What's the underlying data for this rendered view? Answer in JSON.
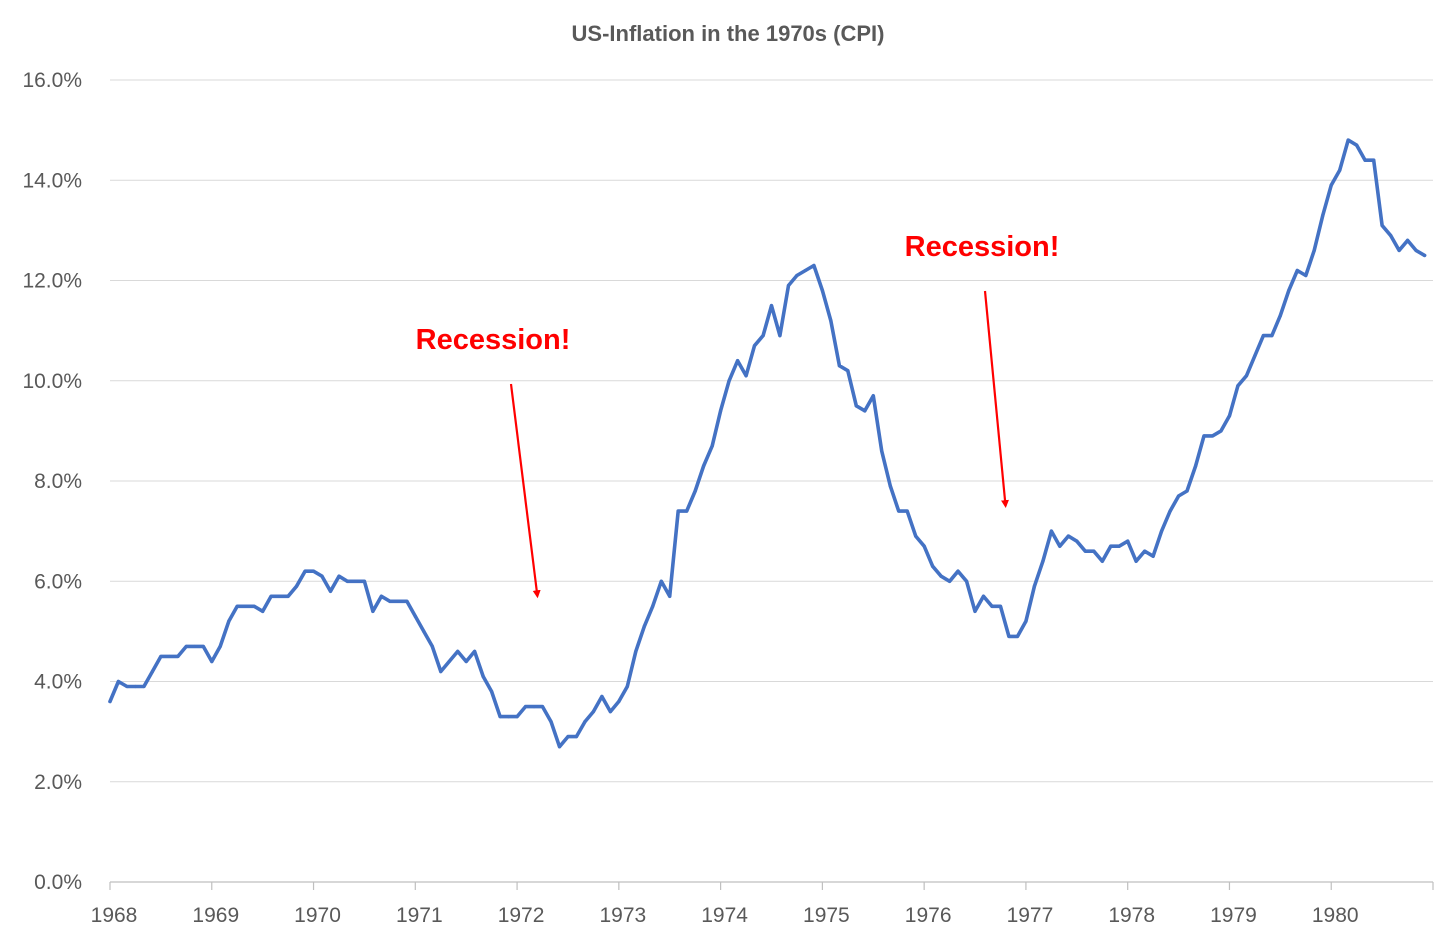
{
  "chart_data": {
    "type": "line",
    "title": "US-Inflation in the 1970s (CPI)",
    "xlabel": "",
    "ylabel": "",
    "xlim": [
      1968,
      1981
    ],
    "ylim": [
      0,
      16
    ],
    "y_tick_values": [
      0,
      2,
      4,
      6,
      8,
      10,
      12,
      14,
      16
    ],
    "y_tick_labels": [
      "0.0%",
      "2.0%",
      "4.0%",
      "6.0%",
      "8.0%",
      "10.0%",
      "12.0%",
      "14.0%",
      "16.0%"
    ],
    "x_tick_values": [
      1968,
      1969,
      1970,
      1971,
      1972,
      1973,
      1974,
      1975,
      1976,
      1977,
      1978,
      1979,
      1980
    ],
    "x_tick_labels": [
      "1968",
      "1969",
      "1970",
      "1971",
      "1972",
      "1973",
      "1974",
      "1975",
      "1976",
      "1977",
      "1978",
      "1979",
      "1980"
    ],
    "grid": "horizontal",
    "legend": "none",
    "series_color": "#4472c4",
    "grid_color": "#d9d9d9",
    "annotation_color": "#ff0000",
    "series": [
      {
        "x": [
          1968.0,
          1968.083,
          1968.167,
          1968.25,
          1968.333,
          1968.417,
          1968.5,
          1968.583,
          1968.667,
          1968.75,
          1968.833,
          1968.917,
          1969.0,
          1969.083,
          1969.167,
          1969.25,
          1969.333,
          1969.417,
          1969.5,
          1969.583,
          1969.667,
          1969.75,
          1969.833,
          1969.917,
          1970.0,
          1970.083,
          1970.167,
          1970.25,
          1970.333,
          1970.417,
          1970.5,
          1970.583,
          1970.667,
          1970.75,
          1970.833,
          1970.917,
          1971.0,
          1971.083,
          1971.167,
          1971.25,
          1971.333,
          1971.417,
          1971.5,
          1971.583,
          1971.667,
          1971.75,
          1971.833,
          1971.917,
          1972.0,
          1972.083,
          1972.167,
          1972.25,
          1972.333,
          1972.417,
          1972.5,
          1972.583,
          1972.667,
          1972.75,
          1972.833,
          1972.917,
          1973.0,
          1973.083,
          1973.167,
          1973.25,
          1973.333,
          1973.417,
          1973.5,
          1973.583,
          1973.667,
          1973.75,
          1973.833,
          1973.917,
          1974.0,
          1974.083,
          1974.167,
          1974.25,
          1974.333,
          1974.417,
          1974.5,
          1974.583,
          1974.667,
          1974.75,
          1974.833,
          1974.917,
          1975.0,
          1975.083,
          1975.167,
          1975.25,
          1975.333,
          1975.417,
          1975.5,
          1975.583,
          1975.667,
          1975.75,
          1975.833,
          1975.917,
          1976.0,
          1976.083,
          1976.167,
          1976.25,
          1976.333,
          1976.417,
          1976.5,
          1976.583,
          1976.667,
          1976.75,
          1976.833,
          1976.917,
          1977.0,
          1977.083,
          1977.167,
          1977.25,
          1977.333,
          1977.417,
          1977.5,
          1977.583,
          1977.667,
          1977.75,
          1977.833,
          1977.917,
          1978.0,
          1978.083,
          1978.167,
          1978.25,
          1978.333,
          1978.417,
          1978.5,
          1978.583,
          1978.667,
          1978.75,
          1978.833,
          1978.917,
          1979.0,
          1979.083,
          1979.167,
          1979.25,
          1979.333,
          1979.417,
          1979.5,
          1979.583,
          1979.667,
          1979.75,
          1979.833,
          1979.917,
          1980.0,
          1980.083,
          1980.167,
          1980.25,
          1980.333,
          1980.417,
          1980.5,
          1980.583,
          1980.667,
          1980.75,
          1980.833,
          1980.917
        ],
        "values": [
          3.6,
          4.0,
          3.9,
          3.9,
          3.9,
          4.2,
          4.5,
          4.5,
          4.5,
          4.7,
          4.7,
          4.7,
          4.4,
          4.7,
          5.2,
          5.5,
          5.5,
          5.5,
          5.4,
          5.7,
          5.7,
          5.7,
          5.9,
          6.2,
          6.2,
          6.1,
          5.8,
          6.1,
          6.0,
          6.0,
          6.0,
          5.4,
          5.7,
          5.6,
          5.6,
          5.6,
          5.3,
          5.0,
          4.7,
          4.2,
          4.4,
          4.6,
          4.4,
          4.6,
          4.1,
          3.8,
          3.3,
          3.3,
          3.3,
          3.5,
          3.5,
          3.5,
          3.2,
          2.7,
          2.9,
          2.9,
          3.2,
          3.4,
          3.7,
          3.4,
          3.6,
          3.9,
          4.6,
          5.1,
          5.5,
          6.0,
          5.7,
          7.4,
          7.4,
          7.8,
          8.3,
          8.7,
          9.4,
          10.0,
          10.4,
          10.1,
          10.7,
          10.9,
          11.5,
          10.9,
          11.9,
          12.1,
          12.2,
          12.3,
          11.8,
          11.2,
          10.3,
          10.2,
          9.5,
          9.4,
          9.7,
          8.6,
          7.9,
          7.4,
          7.4,
          6.9,
          6.7,
          6.3,
          6.1,
          6.0,
          6.2,
          6.0,
          5.4,
          5.7,
          5.5,
          5.5,
          4.9,
          4.9,
          5.2,
          5.9,
          6.4,
          7.0,
          6.7,
          6.9,
          6.8,
          6.6,
          6.6,
          6.4,
          6.7,
          6.7,
          6.8,
          6.4,
          6.6,
          6.5,
          7.0,
          7.4,
          7.7,
          7.8,
          8.3,
          8.9,
          8.9,
          9.0,
          9.3,
          9.9,
          10.1,
          10.5,
          10.9,
          10.9,
          11.3,
          11.8,
          12.2,
          12.1,
          12.6,
          13.3,
          13.9,
          14.2,
          14.8,
          14.7,
          14.4,
          14.4,
          13.1,
          12.9,
          12.6,
          12.8,
          12.6,
          12.5
        ]
      }
    ],
    "annotations": [
      {
        "text": "Recession!",
        "arrow_tip": [
          1972.2,
          5.7
        ]
      },
      {
        "text": "Recession!",
        "arrow_tip": [
          1976.8,
          7.5
        ]
      }
    ]
  }
}
